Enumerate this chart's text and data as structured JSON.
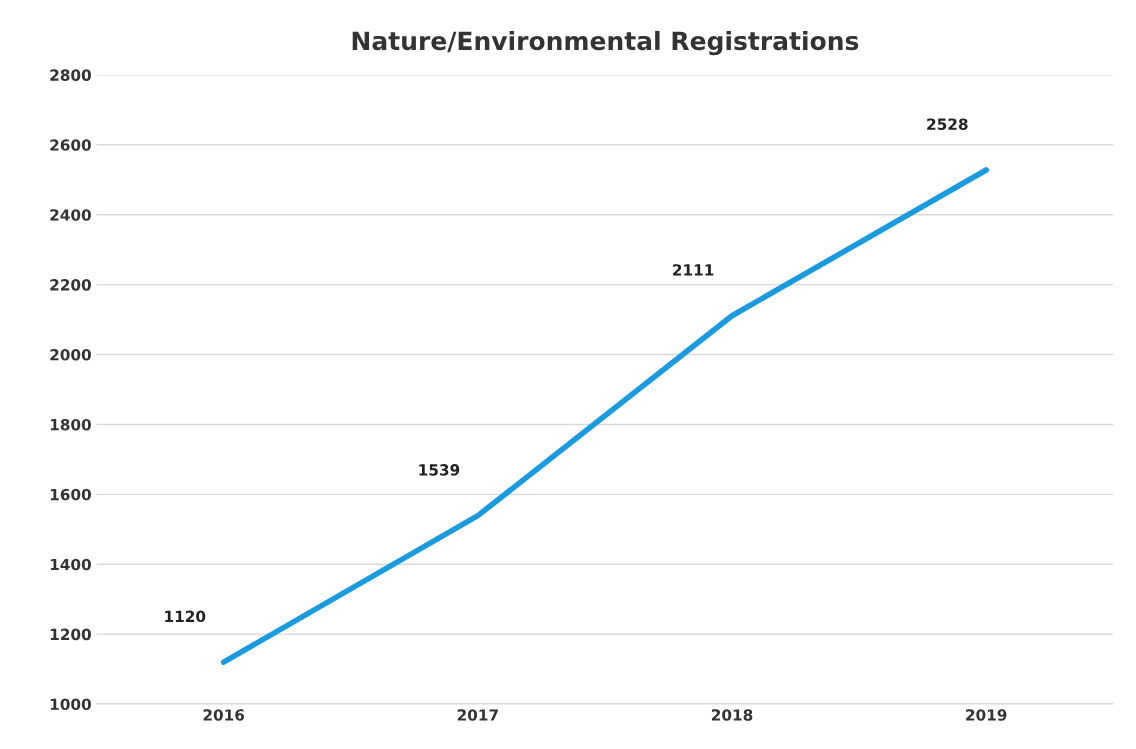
{
  "chart_data": {
    "type": "line",
    "title": "Nature/Environmental Registrations",
    "categories": [
      "2016",
      "2017",
      "2018",
      "2019"
    ],
    "series": [
      {
        "color": "#1a9be0",
        "values": [
          1120,
          1539,
          2111,
          2528
        ]
      }
    ],
    "ylim": [
      1000,
      2800
    ],
    "yticks": [
      1000,
      1200,
      1400,
      1600,
      1800,
      2000,
      2200,
      2400,
      2600,
      2800
    ],
    "grid": "y",
    "data_labels": true,
    "marker": "none",
    "line_style": "solid"
  }
}
